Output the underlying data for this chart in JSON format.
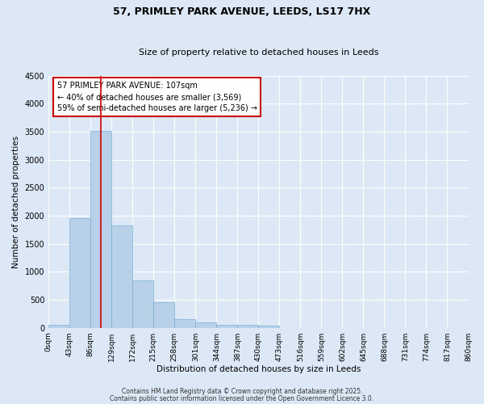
{
  "title1": "57, PRIMLEY PARK AVENUE, LEEDS, LS17 7HX",
  "title2": "Size of property relative to detached houses in Leeds",
  "xlabel": "Distribution of detached houses by size in Leeds",
  "ylabel": "Number of detached properties",
  "bar_color": "#b8d0e8",
  "bar_edge_color": "#7aafd4",
  "background_color": "#dce8f5",
  "grid_color": "#ffffff",
  "bin_labels": [
    "0sqm",
    "43sqm",
    "86sqm",
    "129sqm",
    "172sqm",
    "215sqm",
    "258sqm",
    "301sqm",
    "344sqm",
    "387sqm",
    "430sqm",
    "473sqm",
    "516sqm",
    "559sqm",
    "602sqm",
    "645sqm",
    "688sqm",
    "731sqm",
    "774sqm",
    "817sqm",
    "860sqm"
  ],
  "bar_heights": [
    50,
    1950,
    3510,
    1820,
    850,
    450,
    160,
    90,
    60,
    50,
    40,
    0,
    0,
    0,
    0,
    0,
    0,
    0,
    0,
    0
  ],
  "red_line_x": 107,
  "bin_width": 43,
  "ylim": [
    0,
    4500
  ],
  "yticks": [
    0,
    500,
    1000,
    1500,
    2000,
    2500,
    3000,
    3500,
    4000,
    4500
  ],
  "annotation_text": "57 PRIMLEY PARK AVENUE: 107sqm\n← 40% of detached houses are smaller (3,569)\n59% of semi-detached houses are larger (5,236) →",
  "annotation_box_color": "#ffffff",
  "annotation_box_edge": "#cc0000",
  "red_line_color": "#cc0000",
  "footnote1": "Contains HM Land Registry data © Crown copyright and database right 2025.",
  "footnote2": "Contains public sector information licensed under the Open Government Licence 3.0."
}
